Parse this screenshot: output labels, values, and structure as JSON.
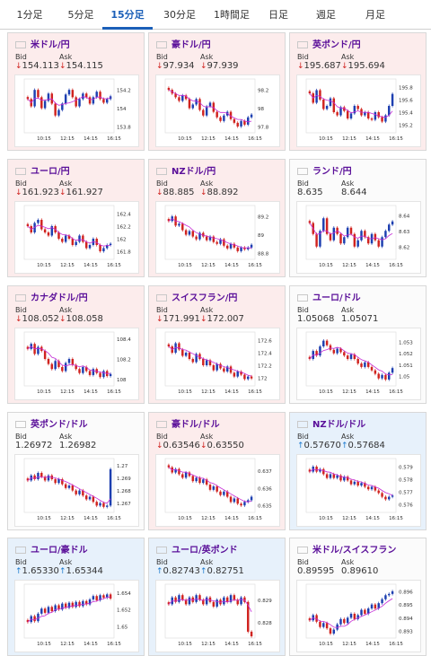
{
  "tabs": [
    {
      "label": "1分足",
      "active": false
    },
    {
      "label": "5分足",
      "active": false
    },
    {
      "label": "15分足",
      "active": true
    },
    {
      "label": "30分足",
      "active": false
    },
    {
      "label": "1時間足",
      "active": false
    },
    {
      "label": "日足",
      "active": false
    },
    {
      "label": "週足",
      "active": false
    },
    {
      "label": "月足",
      "active": false
    }
  ],
  "labels": {
    "bid": "Bid",
    "ask": "Ask"
  },
  "colors": {
    "up_candle": "#1d3fb0",
    "down_candle": "#d0231f",
    "ma": "#c52ad6",
    "down_bg": "#fcecec",
    "up_bg": "#e7f1fb",
    "pair": "#5a0f99",
    "active_tab": "#1b5fb8"
  },
  "pairs": [
    {
      "name": "米ドル/円",
      "flag": "flag-us-jp-icon",
      "trend": "down",
      "bid": "154.113",
      "ask": "154.115",
      "chart_data": {
        "type": "candlestick",
        "x_ticks": [
          "10:15",
          "12:15",
          "14:15",
          "16:15"
        ],
        "y_ticks": [
          "154.2",
          "154",
          "153.8"
        ],
        "y_range": [
          153.75,
          154.3
        ],
        "closes": [
          154.1,
          154.02,
          154.2,
          154.12,
          154.0,
          154.08,
          154.16,
          154.05,
          153.92,
          153.98,
          154.05,
          154.15,
          154.2,
          154.12,
          154.02,
          154.1,
          154.16,
          154.12,
          154.05,
          154.12,
          154.18,
          154.1,
          154.06,
          154.1,
          154.13
        ]
      }
    },
    {
      "name": "豪ドル/円",
      "flag": "flag-au-jp-icon",
      "trend": "down",
      "bid": "97.934",
      "ask": "97.939",
      "chart_data": {
        "type": "candlestick",
        "x_ticks": [
          "10:15",
          "12:15",
          "14:15",
          "16:15"
        ],
        "y_ticks": [
          "98.2",
          "98",
          "97.8"
        ],
        "y_range": [
          97.75,
          98.3
        ],
        "closes": [
          98.2,
          98.16,
          98.12,
          98.08,
          98.14,
          98.1,
          98.0,
          98.04,
          98.1,
          97.98,
          97.92,
          98.02,
          98.06,
          97.96,
          97.9,
          97.86,
          97.92,
          97.96,
          97.88,
          97.84,
          97.8,
          97.86,
          97.82,
          97.9,
          97.93
        ]
      }
    },
    {
      "name": "英ポンド/円",
      "flag": "flag-gb-jp-icon",
      "trend": "down",
      "bid": "195.687",
      "ask": "195.694",
      "chart_data": {
        "type": "candlestick",
        "x_ticks": [
          "10:15",
          "12:15",
          "14:15",
          "16:15"
        ],
        "y_ticks": [
          "195.8",
          "195.6",
          "195.4",
          "195.2"
        ],
        "y_range": [
          195.1,
          195.9
        ],
        "closes": [
          195.7,
          195.55,
          195.75,
          195.6,
          195.45,
          195.5,
          195.62,
          195.4,
          195.35,
          195.48,
          195.42,
          195.3,
          195.38,
          195.5,
          195.45,
          195.35,
          195.4,
          195.3,
          195.28,
          195.4,
          195.32,
          195.25,
          195.35,
          195.5,
          195.69
        ]
      }
    },
    {
      "name": "ユーロ/円",
      "flag": "flag-eu-jp-icon",
      "trend": "down",
      "bid": "161.923",
      "ask": "161.927",
      "chart_data": {
        "type": "candlestick",
        "x_ticks": [
          "10:15",
          "12:15",
          "14:15",
          "16:15"
        ],
        "y_ticks": [
          "162.4",
          "162.2",
          "162",
          "161.8"
        ],
        "y_range": [
          161.7,
          162.5
        ],
        "closes": [
          162.2,
          162.1,
          162.25,
          162.3,
          162.15,
          162.1,
          162.05,
          162.2,
          162.1,
          162.0,
          161.95,
          162.05,
          162.0,
          161.9,
          161.95,
          162.05,
          161.95,
          161.85,
          161.9,
          162.0,
          161.9,
          161.8,
          161.85,
          161.9,
          161.92
        ]
      }
    },
    {
      "name": "NZドル/円",
      "flag": "flag-nz-jp-icon",
      "trend": "down",
      "bid": "88.885",
      "ask": "88.892",
      "chart_data": {
        "type": "candlestick",
        "x_ticks": [
          "10:15",
          "12:15",
          "14:15",
          "16:15"
        ],
        "y_ticks": [
          "89.2",
          "89",
          "88.8"
        ],
        "y_range": [
          88.75,
          89.3
        ],
        "closes": [
          89.15,
          89.2,
          89.1,
          89.12,
          89.05,
          89.0,
          89.04,
          88.98,
          88.95,
          89.02,
          88.98,
          88.94,
          88.98,
          88.92,
          88.9,
          88.95,
          88.88,
          88.85,
          88.9,
          88.86,
          88.82,
          88.86,
          88.84,
          88.86,
          88.89
        ]
      }
    },
    {
      "name": "ランド/円",
      "flag": "flag-za-jp-icon",
      "trend": "flat",
      "bid": "8.635",
      "ask": "8.644",
      "chart_data": {
        "type": "candlestick",
        "x_ticks": [
          "10:15",
          "12:15",
          "14:15",
          "16:15"
        ],
        "y_ticks": [
          "8.64",
          "8.63",
          "8.62"
        ],
        "y_range": [
          8.613,
          8.645
        ],
        "closes": [
          8.635,
          8.628,
          8.62,
          8.63,
          8.638,
          8.628,
          8.624,
          8.632,
          8.628,
          8.622,
          8.626,
          8.632,
          8.628,
          8.62,
          8.624,
          8.63,
          8.626,
          8.622,
          8.628,
          8.624,
          8.62,
          8.626,
          8.63,
          8.634,
          8.636
        ]
      }
    },
    {
      "name": "カナダドル/円",
      "flag": "flag-ca-jp-icon",
      "trend": "down",
      "bid": "108.052",
      "ask": "108.058",
      "chart_data": {
        "type": "candlestick",
        "x_ticks": [
          "10:15",
          "12:15",
          "14:15",
          "16:15"
        ],
        "y_ticks": [
          "108.4",
          "108.2",
          "108"
        ],
        "y_range": [
          107.95,
          108.45
        ],
        "closes": [
          108.3,
          108.35,
          108.25,
          108.32,
          108.28,
          108.2,
          108.15,
          108.1,
          108.18,
          108.12,
          108.08,
          108.16,
          108.2,
          108.14,
          108.1,
          108.06,
          108.12,
          108.08,
          108.04,
          108.1,
          108.06,
          108.02,
          108.08,
          108.03,
          108.05
        ]
      }
    },
    {
      "name": "スイスフラン/円",
      "flag": "flag-ch-jp-icon",
      "trend": "down",
      "bid": "171.991",
      "ask": "172.007",
      "chart_data": {
        "type": "candlestick",
        "x_ticks": [
          "10:15",
          "12:15",
          "14:15",
          "16:15"
        ],
        "y_ticks": [
          "172.6",
          "172.4",
          "172.2",
          "172"
        ],
        "y_range": [
          171.9,
          172.7
        ],
        "closes": [
          172.5,
          172.4,
          172.55,
          172.45,
          172.35,
          172.4,
          172.3,
          172.25,
          172.38,
          172.3,
          172.2,
          172.28,
          172.2,
          172.12,
          172.22,
          172.15,
          172.1,
          172.18,
          172.08,
          172.02,
          172.1,
          172.05,
          171.98,
          172.02,
          171.99
        ]
      }
    },
    {
      "name": "ユーロ/ドル",
      "flag": "flag-eu-us-icon",
      "trend": "flat",
      "bid": "1.05068",
      "ask": "1.05071",
      "chart_data": {
        "type": "candlestick",
        "x_ticks": [
          "10:15",
          "12:15",
          "14:15",
          "16:15"
        ],
        "y_ticks": [
          "1.053",
          "1.052",
          "1.051",
          "1.05"
        ],
        "y_range": [
          1.0493,
          1.0537
        ],
        "closes": [
          1.0515,
          1.0522,
          1.0518,
          1.0526,
          1.0531,
          1.0527,
          1.0523,
          1.052,
          1.0524,
          1.0521,
          1.0518,
          1.0515,
          1.0519,
          1.0515,
          1.0511,
          1.0508,
          1.0512,
          1.0508,
          1.0505,
          1.0502,
          1.0498,
          1.0501,
          1.0497,
          1.0503,
          1.0507
        ]
      }
    },
    {
      "name": "英ポンド/ドル",
      "flag": "flag-gb-us-icon",
      "trend": "flat",
      "bid": "1.26972",
      "ask": "1.26982",
      "chart_data": {
        "type": "candlestick",
        "x_ticks": [
          "10:15",
          "12:15",
          "14:15",
          "16:15"
        ],
        "y_ticks": [
          "1.27",
          "1.269",
          "1.268",
          "1.267"
        ],
        "y_range": [
          1.2664,
          1.2704
        ],
        "closes": [
          1.2688,
          1.2692,
          1.2689,
          1.2694,
          1.2691,
          1.2688,
          1.2692,
          1.2689,
          1.2686,
          1.2689,
          1.2685,
          1.2682,
          1.2684,
          1.268,
          1.2677,
          1.268,
          1.2676,
          1.2673,
          1.2675,
          1.2671,
          1.2668,
          1.267,
          1.2667,
          1.2668,
          1.2697
        ]
      }
    },
    {
      "name": "豪ドル/ドル",
      "flag": "flag-au-us-icon",
      "trend": "down",
      "bid": "0.63546",
      "ask": "0.63550",
      "chart_data": {
        "type": "candlestick",
        "x_ticks": [
          "10:15",
          "12:15",
          "14:15",
          "16:15"
        ],
        "y_ticks": [
          "0.637",
          "0.636",
          "0.635"
        ],
        "y_range": [
          0.6347,
          0.6376
        ],
        "closes": [
          0.6372,
          0.6369,
          0.6371,
          0.6368,
          0.6366,
          0.6369,
          0.6367,
          0.6364,
          0.6366,
          0.6363,
          0.6365,
          0.6362,
          0.6359,
          0.6361,
          0.6358,
          0.6356,
          0.6358,
          0.6355,
          0.6352,
          0.6354,
          0.6351,
          0.635,
          0.6352,
          0.6353,
          0.6355
        ]
      }
    },
    {
      "name": "NZドル/ドル",
      "flag": "flag-nz-us-icon",
      "trend": "up",
      "bid": "0.57670",
      "ask": "0.57684",
      "chart_data": {
        "type": "candlestick",
        "x_ticks": [
          "10:15",
          "12:15",
          "14:15",
          "16:15"
        ],
        "y_ticks": [
          "0.579",
          "0.578",
          "0.577",
          "0.576"
        ],
        "y_range": [
          0.5755,
          0.5795
        ],
        "closes": [
          0.5786,
          0.579,
          0.5786,
          0.5788,
          0.5784,
          0.5781,
          0.5784,
          0.5781,
          0.5783,
          0.5779,
          0.5782,
          0.5779,
          0.5776,
          0.5778,
          0.5775,
          0.5777,
          0.5774,
          0.5772,
          0.5774,
          0.5771,
          0.5769,
          0.5766,
          0.5764,
          0.5766,
          0.5767
        ]
      }
    },
    {
      "name": "ユーロ/豪ドル",
      "flag": "flag-eu-au-icon",
      "trend": "up",
      "bid": "1.65330",
      "ask": "1.65344",
      "chart_data": {
        "type": "candlestick",
        "x_ticks": [
          "10:15",
          "12:15",
          "14:15",
          "16:15"
        ],
        "y_ticks": [
          "1.654",
          "1.652",
          "1.65"
        ],
        "y_range": [
          1.6488,
          1.6548
        ],
        "closes": [
          1.6505,
          1.6512,
          1.6506,
          1.6515,
          1.6521,
          1.6516,
          1.6523,
          1.6518,
          1.6525,
          1.652,
          1.6527,
          1.6522,
          1.6528,
          1.6523,
          1.6529,
          1.6524,
          1.653,
          1.6526,
          1.6532,
          1.6536,
          1.6531,
          1.6537,
          1.6534,
          1.6538,
          1.6533
        ]
      }
    },
    {
      "name": "ユーロ/英ポンド",
      "flag": "flag-eu-gb-icon",
      "trend": "up",
      "bid": "0.82743",
      "ask": "0.82751",
      "chart_data": {
        "type": "candlestick",
        "x_ticks": [
          "10:15",
          "12:15",
          "14:15",
          "16:15"
        ],
        "y_ticks": [
          "0.829",
          "0.828"
        ],
        "y_range": [
          0.8274,
          0.8296
        ],
        "closes": [
          0.8288,
          0.8291,
          0.8289,
          0.8292,
          0.829,
          0.8288,
          0.8291,
          0.8289,
          0.8292,
          0.829,
          0.8288,
          0.8291,
          0.8289,
          0.8287,
          0.829,
          0.8288,
          0.8291,
          0.8289,
          0.8292,
          0.829,
          0.8288,
          0.8291,
          0.8289,
          0.8276,
          0.8274
        ]
      }
    },
    {
      "name": "米ドル/スイスフラン",
      "flag": "flag-us-ch-icon",
      "trend": "flat",
      "bid": "0.89595",
      "ask": "0.89610",
      "chart_data": {
        "type": "candlestick",
        "x_ticks": [
          "10:15",
          "12:15",
          "14:15",
          "16:15"
        ],
        "y_ticks": [
          "0.896",
          "0.895",
          "0.894",
          "0.893"
        ],
        "y_range": [
          0.8926,
          0.8964
        ],
        "closes": [
          0.8938,
          0.8942,
          0.8937,
          0.8933,
          0.8936,
          0.8932,
          0.8928,
          0.8931,
          0.8935,
          0.8939,
          0.8936,
          0.894,
          0.8943,
          0.8939,
          0.8942,
          0.8946,
          0.8943,
          0.8947,
          0.895,
          0.8947,
          0.8951,
          0.8954,
          0.8957,
          0.8958,
          0.896
        ]
      }
    }
  ]
}
